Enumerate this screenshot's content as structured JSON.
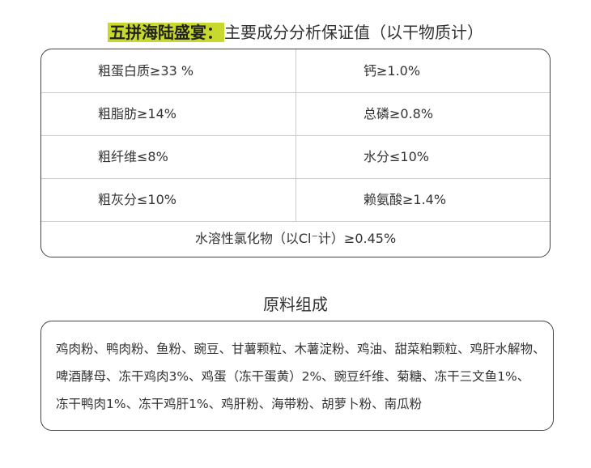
{
  "title": {
    "highlight": "五拼海陆盛宴：",
    "rest": "主要成分分析保证值（以干物质计）"
  },
  "analysis": {
    "rows": [
      {
        "left": "粗蛋白质≥33 %",
        "right": "钙≥1.0%"
      },
      {
        "left": "粗脂肪≥14%",
        "right": "总磷≥0.8%"
      },
      {
        "left": "粗纤维≤8%",
        "right": "水分≤10%"
      },
      {
        "left": "粗灰分≤10%",
        "right": "赖氨酸≥1.4%"
      }
    ],
    "footer": "水溶性氯化物（以Cl⁻计）≥0.45%"
  },
  "ingredients": {
    "heading": "原料组成",
    "lines": [
      "鸡肉粉、鸭肉粉、鱼粉、豌豆、甘薯颗粒、木薯淀粉、鸡油、甜菜粕颗粒、鸡肝水解物、",
      "啤酒酵母、冻干鸡肉3%、鸡蛋（冻干蛋黄）2%、豌豆纤维、菊糖、冻干三文鱼1%、",
      "冻干鸭肉1%、冻干鸡肝1%、鸡肝粉、海带粉、胡萝卜粉、南瓜粉"
    ]
  },
  "colors": {
    "highlight": "#c7d92e"
  }
}
